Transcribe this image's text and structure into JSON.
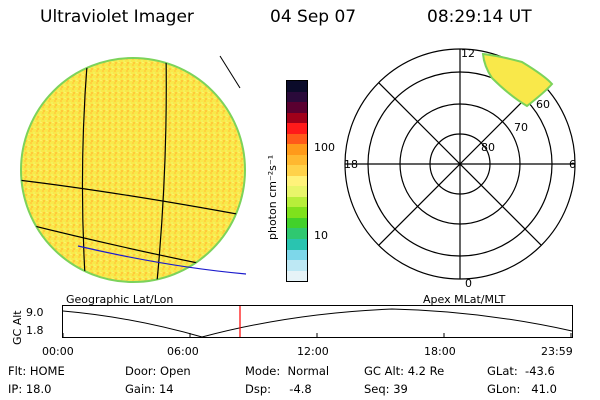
{
  "header": {
    "title": "Ultraviolet Imager",
    "date": "04 Sep 07",
    "time": "08:29:14 UT"
  },
  "geo_panel": {
    "label": "Geographic Lat/Lon",
    "fill_color": "#f9e84a",
    "limb_color": "#7cd35b",
    "grid_color": "#000000",
    "coast_color": "#1a1acc"
  },
  "colorbar": {
    "unit_label": "photon cm⁻²s⁻¹",
    "ticks": [
      {
        "label": "100",
        "value": 100
      },
      {
        "label": "10",
        "value": 10
      }
    ],
    "colors": [
      "#0b0b2a",
      "#2a0a3a",
      "#5a0030",
      "#a0001a",
      "#ff1a1a",
      "#ff5a1a",
      "#ff9a1a",
      "#ffb830",
      "#ffd24a",
      "#fff27a",
      "#e8f56a",
      "#b7ee3a",
      "#7fe11c",
      "#42d12a",
      "#2fc870",
      "#29c4b0",
      "#7dd7ea",
      "#bde8f4",
      "#e6f3f7"
    ]
  },
  "polar_panel": {
    "label": "Apex MLat/MLT",
    "mlt_labels": {
      "top": "12",
      "left": "18",
      "right": "6",
      "bottom": "0"
    },
    "mlat_labels": [
      "60",
      "70",
      "80"
    ],
    "aurora_color": "#f9e84a"
  },
  "altitude_plot": {
    "y_axis_label": "GC Alt",
    "y_ticks": [
      "9.0",
      "1.8"
    ],
    "x_ticks": [
      "00:00",
      "06:00",
      "12:00",
      "18:00",
      "23:59"
    ],
    "current_time_color": "#ff0000"
  },
  "footer": {
    "flt": "Flt: HOME",
    "ip": "IP: 18.0",
    "door": "Door: Open",
    "gain": "Gain: 14",
    "mode": "Mode:  Normal",
    "dsp": "Dsp:     -4.8",
    "gc_alt": "GC Alt: 4.2 Re",
    "seq": "Seq: 39",
    "glat": "GLat:  -43.6",
    "glon": "GLon:   41.0"
  }
}
